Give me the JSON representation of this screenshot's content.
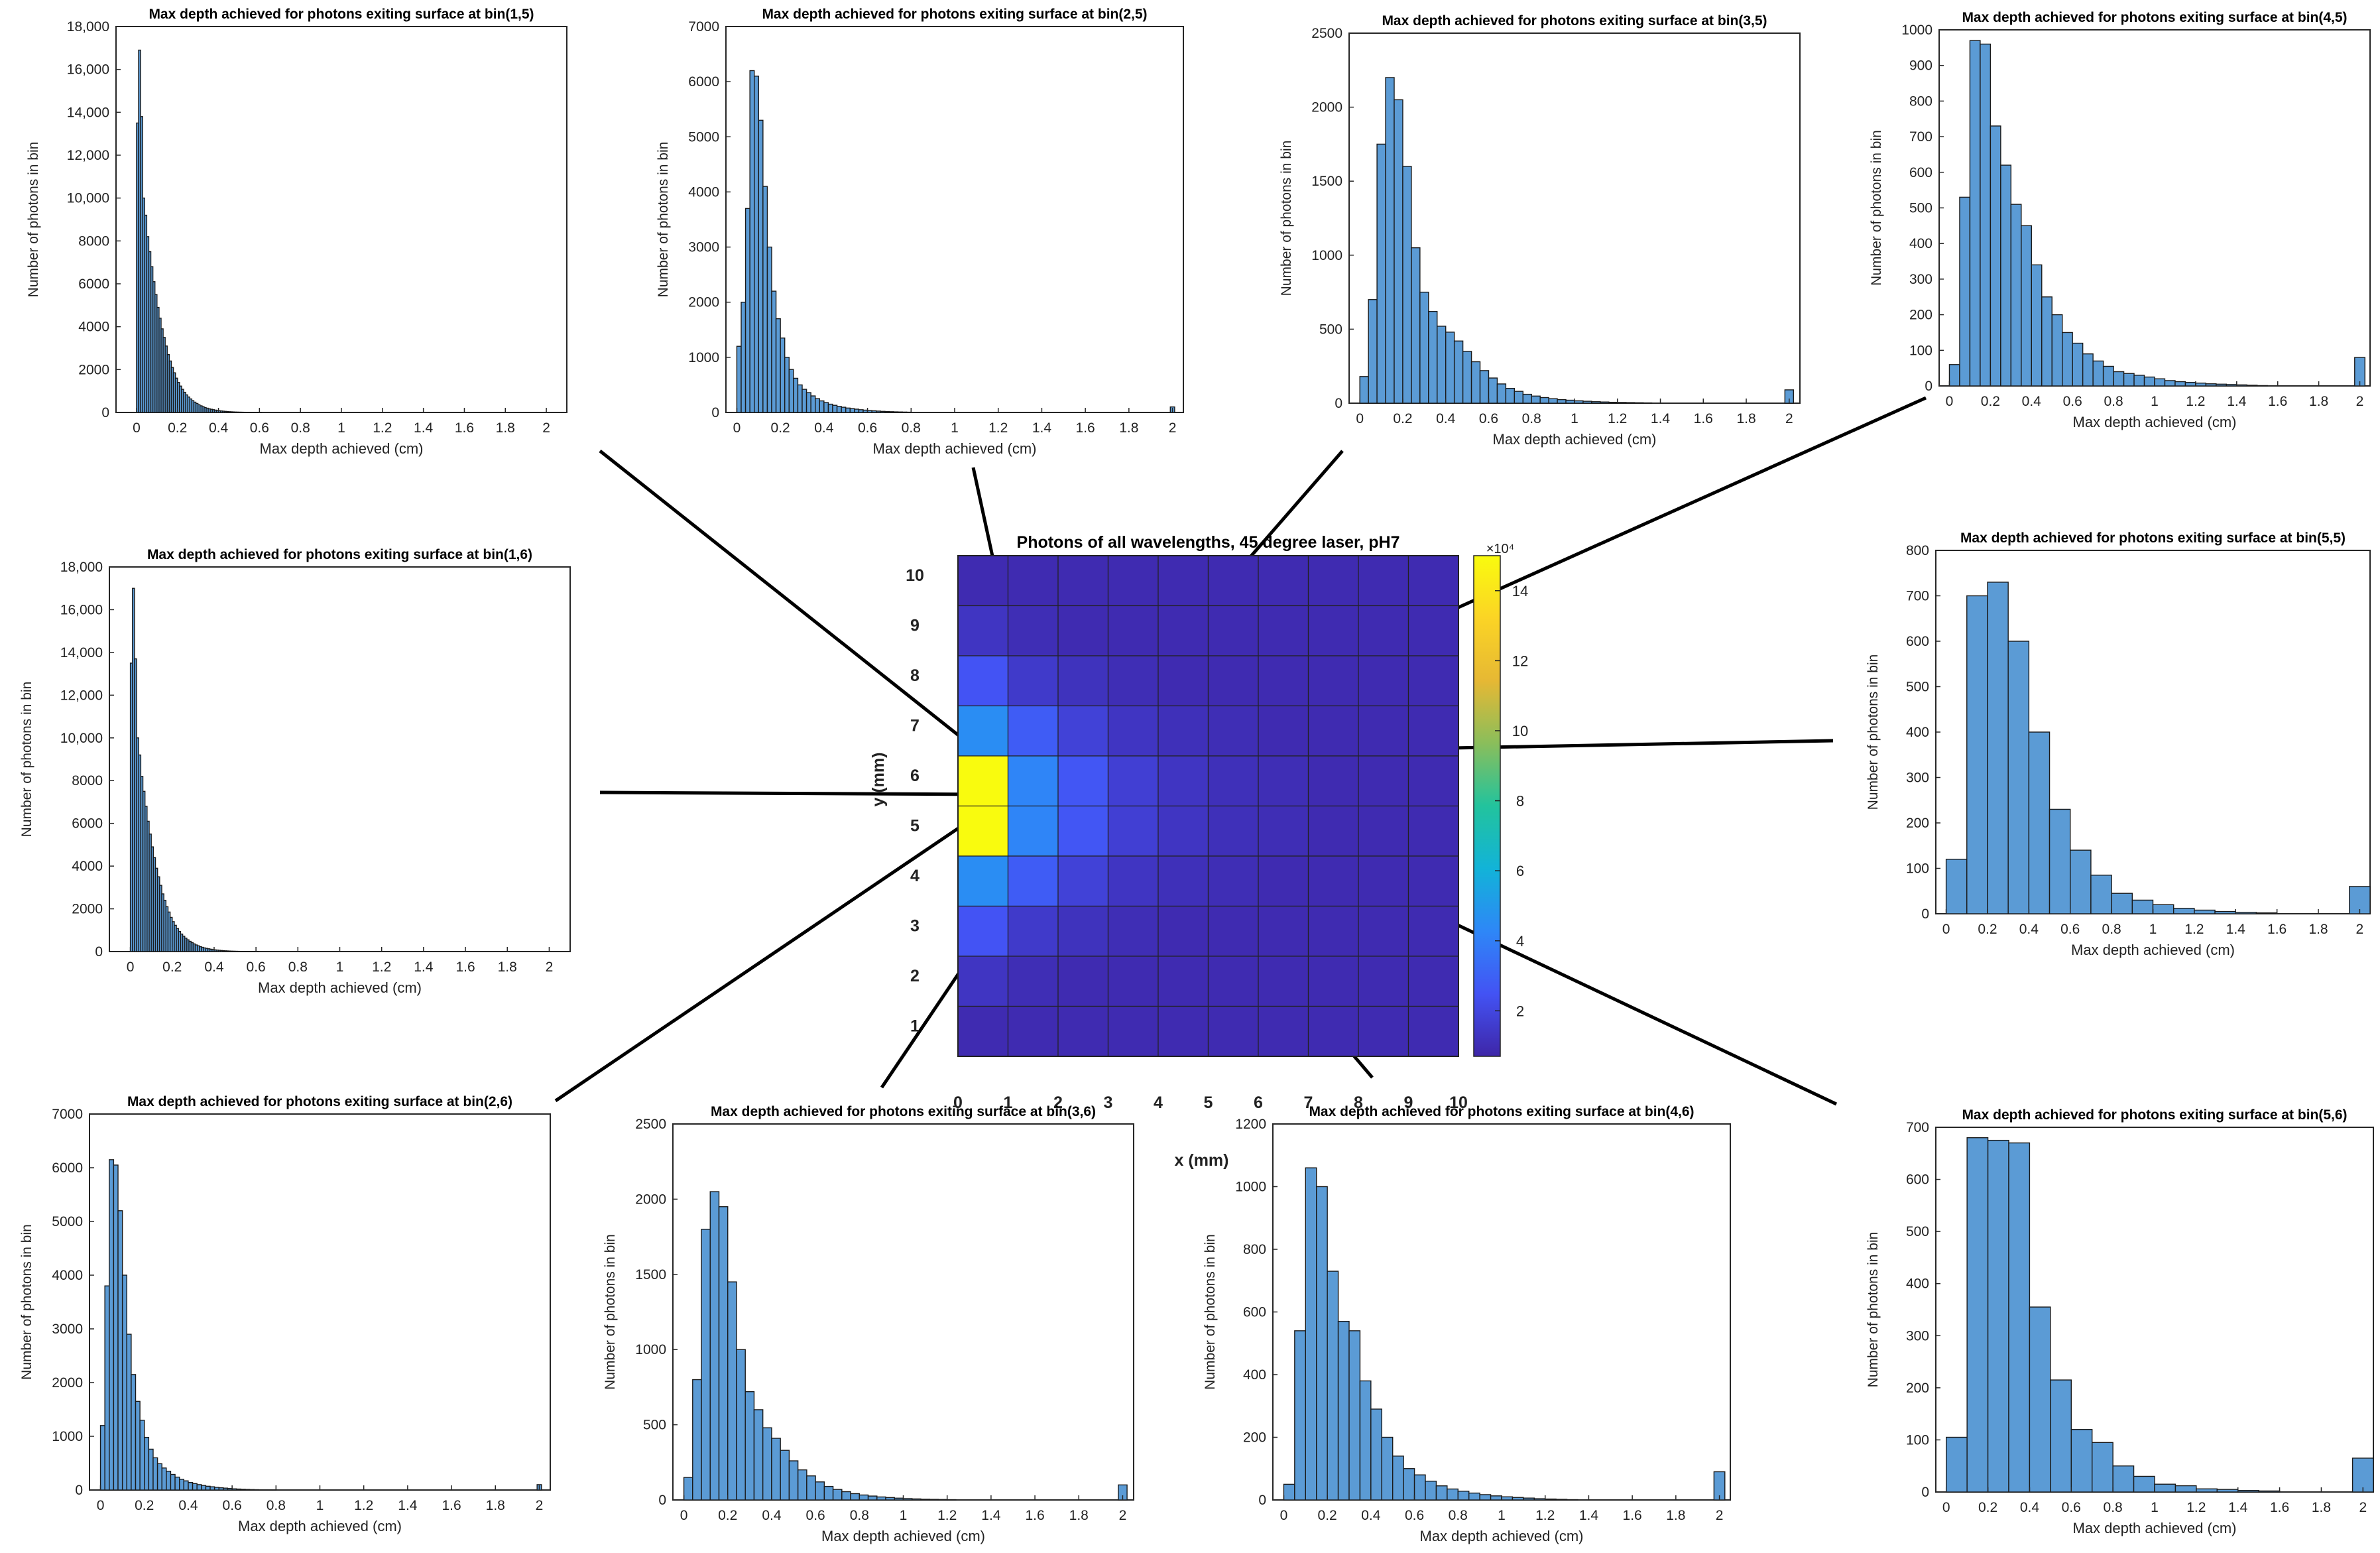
{
  "figure": {
    "heatmap": {
      "title": "Photons of all wavelengths, 45 degree laser, pH7",
      "xlabel": "x (mm)",
      "ylabel": "y (mm)",
      "x_ticks": [
        "0",
        "1",
        "2",
        "3",
        "4",
        "5",
        "6",
        "7",
        "8",
        "9",
        "10"
      ],
      "y_ticks": [
        "1",
        "2",
        "3",
        "4",
        "5",
        "6",
        "7",
        "8",
        "9",
        "10"
      ],
      "colorbar": {
        "exponent_label": "×10⁴",
        "ticks": [
          "2",
          "4",
          "6",
          "8",
          "10",
          "12",
          "14"
        ],
        "range": [
          0.7,
          15
        ],
        "colormap": [
          "#3e26a8",
          "#4353f4",
          "#2e87f7",
          "#12b3d8",
          "#22c39d",
          "#8abe5b",
          "#e6b834",
          "#fbd425",
          "#f9fb0e"
        ]
      }
    },
    "histogram_common": {
      "xlabel": "Max depth achieved (cm)",
      "ylabel": "Number of photons in bin",
      "bar_color": "#5b9bd5"
    }
  },
  "chart_data": [
    {
      "type": "heatmap",
      "title": "Photons of all wavelengths, 45 degree laser, pH7",
      "xlabel": "x (mm)",
      "ylabel": "y (mm)",
      "xlim": [
        0,
        10
      ],
      "ylim": [
        0,
        10
      ],
      "units": "x10^4 photons",
      "rows_top_to_bottom": [
        [
          0.9,
          0.9,
          0.9,
          0.9,
          0.9,
          0.9,
          0.9,
          0.9,
          0.9,
          0.9
        ],
        [
          1.3,
          1.0,
          0.9,
          0.9,
          0.9,
          0.9,
          0.9,
          0.9,
          0.9,
          0.9
        ],
        [
          2.5,
          1.5,
          1.2,
          1.0,
          0.9,
          0.9,
          0.9,
          0.9,
          0.9,
          0.9
        ],
        [
          4.5,
          2.8,
          1.8,
          1.3,
          1.1,
          1.0,
          0.9,
          0.9,
          0.9,
          0.9
        ],
        [
          15.0,
          4.2,
          2.6,
          1.7,
          1.3,
          1.1,
          1.0,
          0.9,
          0.9,
          0.9
        ],
        [
          15.0,
          4.2,
          2.6,
          1.7,
          1.3,
          1.1,
          1.0,
          0.9,
          0.9,
          0.9
        ],
        [
          4.5,
          2.8,
          1.8,
          1.3,
          1.1,
          1.0,
          0.9,
          0.9,
          0.9,
          0.9
        ],
        [
          2.5,
          1.5,
          1.2,
          1.0,
          0.9,
          0.9,
          0.9,
          0.9,
          0.9,
          0.9
        ],
        [
          1.3,
          1.0,
          0.9,
          0.9,
          0.9,
          0.9,
          0.9,
          0.9,
          0.9,
          0.9
        ],
        [
          0.9,
          0.9,
          0.9,
          0.9,
          0.9,
          0.9,
          0.9,
          0.9,
          0.9,
          0.9
        ]
      ]
    },
    {
      "type": "bar",
      "title": "Max depth achieved for photons exiting surface at bin(1,5)",
      "xlabel": "Max depth achieved (cm)",
      "ylabel": "Number of photons in bin",
      "xlim": [
        -0.1,
        2.1
      ],
      "ylim": [
        0,
        18000
      ],
      "bin_width": 0.01,
      "xticks": [
        "0",
        "0.2",
        "0.4",
        "0.6",
        "0.8",
        "1",
        "1.2",
        "1.4",
        "1.6",
        "1.8",
        "2"
      ],
      "yticks": [
        "0",
        "2000",
        "4000",
        "6000",
        "8000",
        "10,000",
        "12,000",
        "14,000",
        "16,000",
        "18,000"
      ],
      "outlier": null,
      "values": [
        13500,
        16900,
        13800,
        10000,
        9200,
        8200,
        7500,
        6800,
        6100,
        5500,
        4900,
        4400,
        3900,
        3500,
        3100,
        2700,
        2400,
        2100,
        1850,
        1600,
        1400,
        1230,
        1080,
        940,
        820,
        720,
        630,
        550,
        480,
        420,
        360,
        310,
        270,
        230,
        200,
        170,
        150,
        130,
        110,
        95,
        80,
        70,
        60,
        50,
        42,
        35,
        30,
        25,
        20,
        17,
        14,
        12,
        10,
        8,
        6,
        5,
        4,
        3,
        2,
        2,
        1
      ]
    },
    {
      "type": "bar",
      "title": "Max depth achieved for photons exiting surface at bin(2,5)",
      "xlabel": "Max depth achieved (cm)",
      "ylabel": "Number of photons in bin",
      "xlim": [
        -0.05,
        2.05
      ],
      "ylim": [
        0,
        7000
      ],
      "bin_width": 0.02,
      "xticks": [
        "0",
        "0.2",
        "0.4",
        "0.6",
        "0.8",
        "1",
        "1.2",
        "1.4",
        "1.6",
        "1.8",
        "2"
      ],
      "yticks": [
        "0",
        "1000",
        "2000",
        "3000",
        "4000",
        "5000",
        "6000",
        "7000"
      ],
      "outlier": {
        "x": 2,
        "value": 100
      },
      "values": [
        1200,
        2000,
        3700,
        6200,
        6100,
        5300,
        4100,
        3000,
        2200,
        1700,
        1350,
        1000,
        780,
        620,
        500,
        420,
        360,
        300,
        250,
        210,
        180,
        150,
        130,
        110,
        95,
        80,
        70,
        60,
        50,
        42,
        35,
        30,
        25,
        20,
        17,
        14,
        11,
        9,
        7,
        5
      ]
    },
    {
      "type": "bar",
      "title": "Max depth achieved for photons exiting surface at bin(3,5)",
      "xlabel": "Max depth achieved (cm)",
      "ylabel": "Number of photons in bin",
      "xlim": [
        -0.05,
        2.05
      ],
      "ylim": [
        0,
        2500
      ],
      "bin_width": 0.04,
      "xticks": [
        "0",
        "0.2",
        "0.4",
        "0.6",
        "0.8",
        "1",
        "1.2",
        "1.4",
        "1.6",
        "1.8",
        "2"
      ],
      "yticks": [
        "0",
        "500",
        "1000",
        "1500",
        "2000",
        "2500"
      ],
      "outlier": {
        "x": 2,
        "value": 90
      },
      "values": [
        180,
        700,
        1750,
        2200,
        2050,
        1600,
        1050,
        750,
        620,
        520,
        480,
        420,
        350,
        280,
        220,
        170,
        130,
        100,
        80,
        60,
        48,
        38,
        30,
        24,
        20,
        16,
        13,
        10,
        8,
        6,
        5,
        4,
        3,
        2
      ]
    },
    {
      "type": "bar",
      "title": "Max depth achieved for photons exiting surface at bin(4,5)",
      "xlabel": "Max depth achieved (cm)",
      "ylabel": "Number of photons in bin",
      "xlim": [
        -0.05,
        2.05
      ],
      "ylim": [
        0,
        1000
      ],
      "bin_width": 0.05,
      "xticks": [
        "0",
        "0.2",
        "0.4",
        "0.6",
        "0.8",
        "1",
        "1.2",
        "1.4",
        "1.6",
        "1.8",
        "2"
      ],
      "yticks": [
        "0",
        "100",
        "200",
        "300",
        "400",
        "500",
        "600",
        "700",
        "800",
        "900",
        "1000"
      ],
      "outlier": {
        "x": 2,
        "value": 80
      },
      "values": [
        60,
        530,
        970,
        960,
        730,
        620,
        510,
        450,
        340,
        250,
        200,
        150,
        120,
        90,
        70,
        55,
        40,
        35,
        30,
        25,
        20,
        15,
        12,
        10,
        8,
        6,
        5,
        4,
        3,
        2,
        1
      ]
    },
    {
      "type": "bar",
      "title": "Max depth achieved for photons exiting surface at bin(1,6)",
      "xlabel": "Max depth achieved (cm)",
      "ylabel": "Number of photons in bin",
      "xlim": [
        -0.1,
        2.1
      ],
      "ylim": [
        0,
        18000
      ],
      "bin_width": 0.01,
      "xticks": [
        "0",
        "0.2",
        "0.4",
        "0.6",
        "0.8",
        "1",
        "1.2",
        "1.4",
        "1.6",
        "1.8",
        "2"
      ],
      "yticks": [
        "0",
        "2000",
        "4000",
        "6000",
        "8000",
        "10,000",
        "12,000",
        "14,000",
        "16,000",
        "18,000"
      ],
      "outlier": null,
      "values": [
        13500,
        17000,
        13700,
        10000,
        9200,
        8200,
        7500,
        6800,
        6100,
        5500,
        4900,
        4400,
        3900,
        3500,
        3100,
        2700,
        2400,
        2100,
        1850,
        1600,
        1400,
        1230,
        1080,
        940,
        820,
        720,
        630,
        550,
        480,
        420,
        360,
        310,
        270,
        230,
        200,
        170,
        150,
        130,
        110,
        95,
        80,
        70,
        60,
        50,
        42,
        35,
        30,
        25,
        20,
        17,
        14,
        12,
        10,
        8,
        6,
        5,
        4,
        3,
        2,
        2,
        1
      ]
    },
    {
      "type": "bar",
      "title": "Max depth achieved for photons exiting surface at bin(5,5)",
      "xlabel": "Max depth achieved (cm)",
      "ylabel": "Number of photons in bin",
      "xlim": [
        -0.05,
        2.05
      ],
      "ylim": [
        0,
        800
      ],
      "bin_width": 0.1,
      "xticks": [
        "0",
        "0.2",
        "0.4",
        "0.6",
        "0.8",
        "1",
        "1.2",
        "1.4",
        "1.6",
        "1.8",
        "2"
      ],
      "yticks": [
        "0",
        "100",
        "200",
        "300",
        "400",
        "500",
        "600",
        "700",
        "800"
      ],
      "outlier": {
        "x": 2,
        "value": 60
      },
      "values": [
        120,
        700,
        730,
        600,
        400,
        230,
        140,
        85,
        45,
        30,
        20,
        12,
        8,
        5,
        3,
        2
      ]
    },
    {
      "type": "bar",
      "title": "Max depth achieved for photons exiting surface at bin(2,6)",
      "xlabel": "Max depth achieved (cm)",
      "ylabel": "Number of photons in bin",
      "xlim": [
        -0.05,
        2.05
      ],
      "ylim": [
        0,
        7000
      ],
      "bin_width": 0.02,
      "xticks": [
        "0",
        "0.2",
        "0.4",
        "0.6",
        "0.8",
        "1",
        "1.2",
        "1.4",
        "1.6",
        "1.8",
        "2"
      ],
      "yticks": [
        "0",
        "1000",
        "2000",
        "3000",
        "4000",
        "5000",
        "6000",
        "7000"
      ],
      "outlier": {
        "x": 2,
        "value": 100
      },
      "values": [
        1200,
        3800,
        6150,
        6050,
        5200,
        4000,
        2900,
        2150,
        1650,
        1300,
        980,
        760,
        600,
        490,
        410,
        350,
        290,
        240,
        200,
        170,
        140,
        120,
        100,
        85,
        70,
        60,
        50,
        42,
        35,
        28,
        22,
        18,
        14,
        11,
        8,
        6,
        4,
        3,
        2,
        1
      ]
    },
    {
      "type": "bar",
      "title": "Max depth achieved for photons exiting surface at bin(3,6)",
      "xlabel": "Max depth achieved (cm)",
      "ylabel": "Number of photons in bin",
      "xlim": [
        -0.05,
        2.05
      ],
      "ylim": [
        0,
        2500
      ],
      "bin_width": 0.04,
      "xticks": [
        "0",
        "0.2",
        "0.4",
        "0.6",
        "0.8",
        "1",
        "1.2",
        "1.4",
        "1.6",
        "1.8",
        "2"
      ],
      "yticks": [
        "0",
        "500",
        "1000",
        "1500",
        "2000",
        "2500"
      ],
      "outlier": {
        "x": 2,
        "value": 100
      },
      "values": [
        150,
        800,
        1800,
        2050,
        1950,
        1450,
        1000,
        720,
        600,
        480,
        410,
        330,
        260,
        200,
        160,
        120,
        90,
        70,
        55,
        42,
        33,
        26,
        20,
        16,
        12,
        9,
        7,
        5,
        4,
        3,
        2
      ]
    },
    {
      "type": "bar",
      "title": "Max depth achieved for photons exiting surface at bin(4,6)",
      "xlabel": "Max depth achieved (cm)",
      "ylabel": "Number of photons in bin",
      "xlim": [
        -0.05,
        2.05
      ],
      "ylim": [
        0,
        1200
      ],
      "bin_width": 0.05,
      "xticks": [
        "0",
        "0.2",
        "0.4",
        "0.6",
        "0.8",
        "1",
        "1.2",
        "1.4",
        "1.6",
        "1.8",
        "2"
      ],
      "yticks": [
        "0",
        "200",
        "400",
        "600",
        "800",
        "1000",
        "1200"
      ],
      "outlier": {
        "x": 2,
        "value": 90
      },
      "values": [
        50,
        540,
        1060,
        1000,
        730,
        570,
        540,
        380,
        290,
        200,
        140,
        100,
        80,
        60,
        45,
        35,
        28,
        22,
        17,
        13,
        10,
        8,
        6,
        4,
        3,
        2,
        1
      ]
    },
    {
      "type": "bar",
      "title": "Max depth achieved for photons exiting surface at bin(5,6)",
      "xlabel": "Max depth achieved (cm)",
      "ylabel": "Number of photons in bin",
      "xlim": [
        -0.05,
        2.05
      ],
      "ylim": [
        0,
        700
      ],
      "bin_width": 0.1,
      "xticks": [
        "0",
        "0.2",
        "0.4",
        "0.6",
        "0.8",
        "1",
        "1.2",
        "1.4",
        "1.6",
        "1.8",
        "2"
      ],
      "yticks": [
        "0",
        "100",
        "200",
        "300",
        "400",
        "500",
        "600",
        "700"
      ],
      "outlier": {
        "x": 2,
        "value": 65
      },
      "values": [
        105,
        680,
        675,
        670,
        355,
        215,
        120,
        95,
        50,
        30,
        15,
        12,
        6,
        5,
        3,
        2
      ]
    }
  ]
}
